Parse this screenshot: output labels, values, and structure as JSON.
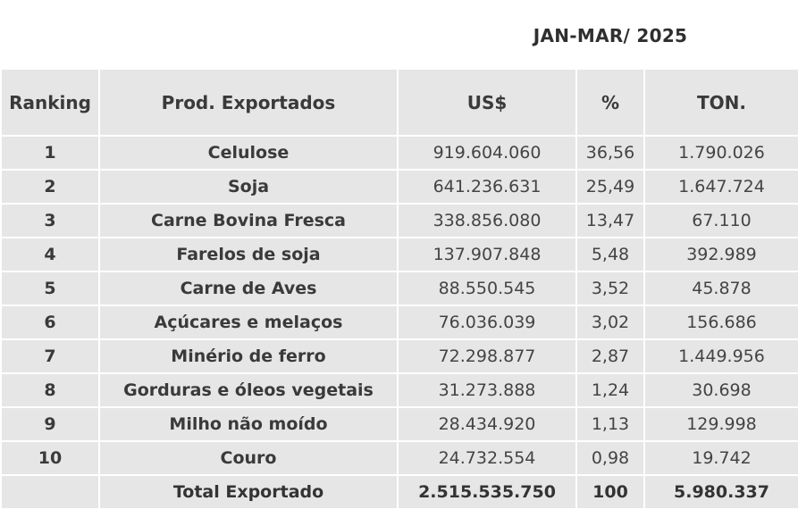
{
  "period_label": "JAN-MAR/ 2025",
  "colors": {
    "cell_bg": "#e7e6e6",
    "grid": "#ffffff",
    "text": "#3a3a3a"
  },
  "headers": {
    "ranking": "Ranking",
    "product": "Prod. Exportados",
    "usd": "US$",
    "percent": "%",
    "ton": "TON."
  },
  "rows": [
    {
      "rank": "1",
      "product": "Celulose",
      "usd": "919.604.060",
      "percent": "36,56",
      "ton": "1.790.026"
    },
    {
      "rank": "2",
      "product": "Soja",
      "usd": "641.236.631",
      "percent": "25,49",
      "ton": "1.647.724"
    },
    {
      "rank": "3",
      "product": "Carne Bovina Fresca",
      "usd": "338.856.080",
      "percent": "13,47",
      "ton": "67.110"
    },
    {
      "rank": "4",
      "product": "Farelos de soja",
      "usd": "137.907.848",
      "percent": "5,48",
      "ton": "392.989"
    },
    {
      "rank": "5",
      "product": "Carne de Aves",
      "usd": "88.550.545",
      "percent": "3,52",
      "ton": "45.878"
    },
    {
      "rank": "6",
      "product": "Açúcares e melaços",
      "usd": "76.036.039",
      "percent": "3,02",
      "ton": "156.686"
    },
    {
      "rank": "7",
      "product": "Minério de ferro",
      "usd": "72.298.877",
      "percent": "2,87",
      "ton": "1.449.956"
    },
    {
      "rank": "8",
      "product": "Gorduras e óleos vegetais",
      "usd": "31.273.888",
      "percent": "1,24",
      "ton": "30.698"
    },
    {
      "rank": "9",
      "product": "Milho não moído",
      "usd": "28.434.920",
      "percent": "1,13",
      "ton": "129.998"
    },
    {
      "rank": "10",
      "product": "Couro",
      "usd": "24.732.554",
      "percent": "0,98",
      "ton": "19.742"
    }
  ],
  "total": {
    "rank": "",
    "product": "Total Exportado",
    "usd": "2.515.535.750",
    "percent": "100",
    "ton": "5.980.337"
  }
}
